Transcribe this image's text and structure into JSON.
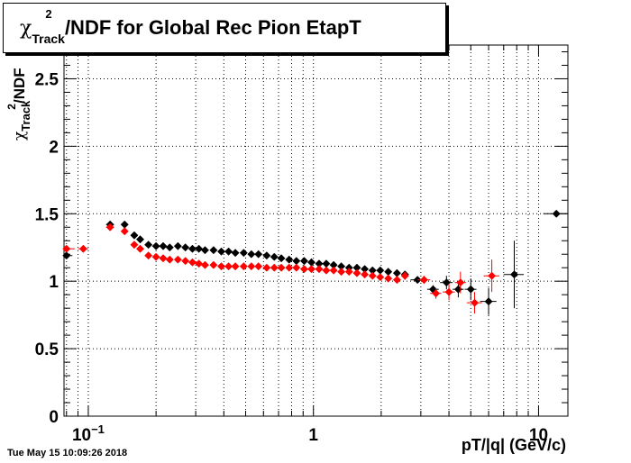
{
  "chart_data": {
    "type": "scatter",
    "title": {
      "prefix": "χ",
      "sup": "2",
      "sub": "Track",
      "rest": "/NDF for Global Rec Pion EtapT"
    },
    "ylabel": {
      "prefix": "χ",
      "sup": "2",
      "sub": "Track",
      "rest": "/NDF"
    },
    "xlabel": "pT/|q| (GeV/c)",
    "timestamp": "Tue May 15 10:09:26 2018",
    "x_scale": "log",
    "xlim": [
      0.078,
      13.5
    ],
    "ylim": [
      0,
      2.75
    ],
    "grid": true,
    "x_ticks": [
      {
        "value": 0.1,
        "label": "10",
        "sup": "−1"
      },
      {
        "value": 1,
        "label": "1",
        "sup": ""
      },
      {
        "value": 10,
        "label": "10",
        "sup": ""
      }
    ],
    "y_ticks": [
      {
        "value": 0,
        "label": "0"
      },
      {
        "value": 0.5,
        "label": "0.5"
      },
      {
        "value": 1,
        "label": "1"
      },
      {
        "value": 1.5,
        "label": "1.5"
      },
      {
        "value": 2,
        "label": "2"
      },
      {
        "value": 2.5,
        "label": "2.5"
      }
    ],
    "series": [
      {
        "color": "#000000",
        "points": [
          {
            "x": 0.08,
            "y": 1.19,
            "xlo": 0.078,
            "xhi": 0.085
          },
          {
            "x": 0.125,
            "y": 1.42,
            "xlo": 0.12,
            "xhi": 0.13
          },
          {
            "x": 0.145,
            "y": 1.42,
            "xlo": 0.14,
            "xhi": 0.15
          },
          {
            "x": 0.16,
            "y": 1.34
          },
          {
            "x": 0.17,
            "y": 1.31
          },
          {
            "x": 0.185,
            "y": 1.27
          },
          {
            "x": 0.2,
            "y": 1.26
          },
          {
            "x": 0.215,
            "y": 1.26
          },
          {
            "x": 0.23,
            "y": 1.25
          },
          {
            "x": 0.25,
            "y": 1.26
          },
          {
            "x": 0.27,
            "y": 1.25
          },
          {
            "x": 0.29,
            "y": 1.24
          },
          {
            "x": 0.31,
            "y": 1.24
          },
          {
            "x": 0.33,
            "y": 1.23
          },
          {
            "x": 0.36,
            "y": 1.23
          },
          {
            "x": 0.39,
            "y": 1.22
          },
          {
            "x": 0.42,
            "y": 1.22
          },
          {
            "x": 0.45,
            "y": 1.21
          },
          {
            "x": 0.49,
            "y": 1.21
          },
          {
            "x": 0.53,
            "y": 1.2
          },
          {
            "x": 0.57,
            "y": 1.2
          },
          {
            "x": 0.62,
            "y": 1.19
          },
          {
            "x": 0.67,
            "y": 1.18
          },
          {
            "x": 0.72,
            "y": 1.17
          },
          {
            "x": 0.78,
            "y": 1.16
          },
          {
            "x": 0.84,
            "y": 1.15
          },
          {
            "x": 0.91,
            "y": 1.15
          },
          {
            "x": 0.98,
            "y": 1.14
          },
          {
            "x": 1.06,
            "y": 1.13
          },
          {
            "x": 1.14,
            "y": 1.13
          },
          {
            "x": 1.23,
            "y": 1.12
          },
          {
            "x": 1.33,
            "y": 1.11
          },
          {
            "x": 1.44,
            "y": 1.1
          },
          {
            "x": 1.56,
            "y": 1.1
          },
          {
            "x": 1.69,
            "y": 1.09
          },
          {
            "x": 1.83,
            "y": 1.08
          },
          {
            "x": 1.98,
            "y": 1.08
          },
          {
            "x": 2.15,
            "y": 1.07
          },
          {
            "x": 2.35,
            "y": 1.06
          },
          {
            "x": 2.55,
            "y": 1.05,
            "yerr": 0.02
          },
          {
            "x": 2.9,
            "y": 1.01,
            "yerr": 0.02,
            "xlo": 2.7,
            "xhi": 3.1
          },
          {
            "x": 3.4,
            "y": 0.94,
            "yerr": 0.03,
            "xlo": 3.2,
            "xhi": 3.6
          },
          {
            "x": 3.9,
            "y": 0.99,
            "yerr": 0.05,
            "xlo": 3.65,
            "xhi": 4.15
          },
          {
            "x": 4.4,
            "y": 0.94,
            "yerr": 0.06,
            "xlo": 4.15,
            "xhi": 4.65
          },
          {
            "x": 5.0,
            "y": 0.94,
            "yerr": 0.08,
            "xlo": 4.7,
            "xhi": 5.3
          },
          {
            "x": 6.0,
            "y": 0.85,
            "yerr": 0.1,
            "xlo": 5.5,
            "xhi": 6.5
          },
          {
            "x": 7.8,
            "y": 1.05,
            "yerr": 0.25,
            "xlo": 7.0,
            "xhi": 8.6
          },
          {
            "x": 12.0,
            "y": 1.5,
            "xlo": 10.5,
            "xhi": 13.5
          }
        ]
      },
      {
        "color": "#ff0000",
        "points": [
          {
            "x": 0.08,
            "y": 1.24,
            "xlo": 0.078,
            "xhi": 0.087
          },
          {
            "x": 0.095,
            "y": 1.24,
            "xlo": 0.09,
            "xhi": 0.1
          },
          {
            "x": 0.125,
            "y": 1.4,
            "xlo": 0.12,
            "xhi": 0.13
          },
          {
            "x": 0.145,
            "y": 1.37,
            "xlo": 0.14,
            "xhi": 0.15
          },
          {
            "x": 0.16,
            "y": 1.27
          },
          {
            "x": 0.17,
            "y": 1.24
          },
          {
            "x": 0.185,
            "y": 1.19
          },
          {
            "x": 0.2,
            "y": 1.18
          },
          {
            "x": 0.215,
            "y": 1.17
          },
          {
            "x": 0.23,
            "y": 1.16
          },
          {
            "x": 0.25,
            "y": 1.16
          },
          {
            "x": 0.27,
            "y": 1.15
          },
          {
            "x": 0.29,
            "y": 1.14
          },
          {
            "x": 0.31,
            "y": 1.13
          },
          {
            "x": 0.33,
            "y": 1.12
          },
          {
            "x": 0.36,
            "y": 1.12
          },
          {
            "x": 0.39,
            "y": 1.11
          },
          {
            "x": 0.42,
            "y": 1.11
          },
          {
            "x": 0.45,
            "y": 1.11
          },
          {
            "x": 0.49,
            "y": 1.11
          },
          {
            "x": 0.53,
            "y": 1.11
          },
          {
            "x": 0.57,
            "y": 1.11
          },
          {
            "x": 0.62,
            "y": 1.1
          },
          {
            "x": 0.67,
            "y": 1.1
          },
          {
            "x": 0.72,
            "y": 1.1
          },
          {
            "x": 0.78,
            "y": 1.1
          },
          {
            "x": 0.84,
            "y": 1.1
          },
          {
            "x": 0.91,
            "y": 1.09
          },
          {
            "x": 0.98,
            "y": 1.09
          },
          {
            "x": 1.06,
            "y": 1.09
          },
          {
            "x": 1.14,
            "y": 1.08
          },
          {
            "x": 1.23,
            "y": 1.08
          },
          {
            "x": 1.33,
            "y": 1.07
          },
          {
            "x": 1.44,
            "y": 1.07
          },
          {
            "x": 1.56,
            "y": 1.06
          },
          {
            "x": 1.69,
            "y": 1.05
          },
          {
            "x": 1.83,
            "y": 1.04
          },
          {
            "x": 1.98,
            "y": 1.03
          },
          {
            "x": 2.15,
            "y": 1.02
          },
          {
            "x": 2.35,
            "y": 1.01
          },
          {
            "x": 2.55,
            "y": 1.04,
            "yerr": 0.03
          },
          {
            "x": 3.1,
            "y": 1.01,
            "yerr": 0.03,
            "xlo": 2.9,
            "xhi": 3.3
          },
          {
            "x": 3.5,
            "y": 0.91,
            "yerr": 0.04,
            "xlo": 3.3,
            "xhi": 3.7
          },
          {
            "x": 4.0,
            "y": 0.92,
            "yerr": 0.06,
            "xlo": 3.75,
            "xhi": 4.25
          },
          {
            "x": 4.5,
            "y": 0.99,
            "yerr": 0.08,
            "xlo": 4.25,
            "xhi": 4.75
          },
          {
            "x": 5.2,
            "y": 0.84,
            "yerr": 0.08,
            "xlo": 4.8,
            "xhi": 5.6
          },
          {
            "x": 6.2,
            "y": 1.04,
            "yerr": 0.12,
            "xlo": 5.7,
            "xhi": 6.7
          }
        ]
      }
    ]
  }
}
